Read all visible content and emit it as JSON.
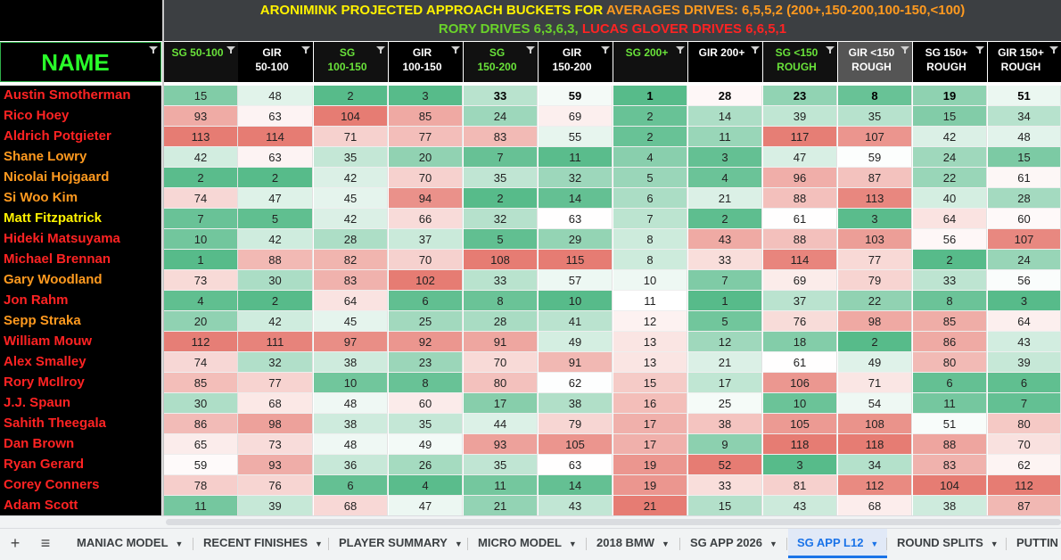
{
  "title": {
    "line1_parts": [
      {
        "text": "ARONIMINK PROJECTED APPROACH BUCKETS FOR ",
        "color": "yellow"
      },
      {
        "text": "AVERAGES DRIVES: 6,5,5,2 (200+,150-200,100-150,<100)",
        "color": "orange"
      }
    ],
    "line2_parts": [
      {
        "text": "RORY DRIVES 6,3,6,3, ",
        "color": "green"
      },
      {
        "text": "LUCAS GLOVER DRIVES 6,6,5,1",
        "color": "red"
      }
    ]
  },
  "name_header": "NAME",
  "columns": [
    {
      "label": "SG 50-100",
      "style": "green"
    },
    {
      "label": "GIR\n50-100",
      "style": "white"
    },
    {
      "label": "SG\n100-150",
      "style": "green"
    },
    {
      "label": "GIR\n100-150",
      "style": "white"
    },
    {
      "label": "SG\n150-200",
      "style": "green"
    },
    {
      "label": "GIR\n150-200",
      "style": "white"
    },
    {
      "label": "SG 200+",
      "style": "green"
    },
    {
      "label": "GIR 200+",
      "style": "white"
    },
    {
      "label": "SG <150\nROUGH",
      "style": "green"
    },
    {
      "label": "GIR <150\nROUGH",
      "style": "gray"
    },
    {
      "label": "SG 150+\nROUGH",
      "style": "white"
    },
    {
      "label": "GIR 150+\nROUGH",
      "style": "white"
    }
  ],
  "players": [
    {
      "name": "Austin Smotherman",
      "color": "#ff2323",
      "values": [
        15,
        48,
        2,
        3,
        33,
        59,
        1,
        28,
        23,
        8,
        19,
        51
      ]
    },
    {
      "name": "Rico Hoey",
      "color": "#ff2323",
      "values": [
        93,
        63,
        104,
        85,
        24,
        69,
        2,
        14,
        39,
        35,
        15,
        34
      ]
    },
    {
      "name": "Aldrich Potgieter",
      "color": "#ff2323",
      "values": [
        113,
        114,
        71,
        77,
        83,
        55,
        2,
        11,
        117,
        107,
        42,
        48
      ]
    },
    {
      "name": "Shane Lowry",
      "color": "#ff9a1f",
      "values": [
        42,
        63,
        35,
        20,
        7,
        11,
        4,
        3,
        47,
        59,
        24,
        15
      ]
    },
    {
      "name": "Nicolai Hojgaard",
      "color": "#ff9a1f",
      "values": [
        2,
        2,
        42,
        70,
        35,
        32,
        5,
        4,
        96,
        87,
        22,
        61
      ]
    },
    {
      "name": "Si Woo Kim",
      "color": "#ff9a1f",
      "values": [
        74,
        47,
        45,
        94,
        2,
        14,
        6,
        21,
        88,
        113,
        40,
        28
      ]
    },
    {
      "name": "Matt Fitzpatrick",
      "color": "#fff200",
      "values": [
        7,
        5,
        42,
        66,
        32,
        63,
        7,
        2,
        61,
        3,
        64,
        60
      ]
    },
    {
      "name": "Hideki Matsuyama",
      "color": "#ff2323",
      "values": [
        10,
        42,
        28,
        37,
        5,
        29,
        8,
        43,
        88,
        103,
        56,
        107
      ]
    },
    {
      "name": "Michael Brennan",
      "color": "#ff2323",
      "values": [
        1,
        88,
        82,
        70,
        108,
        115,
        8,
        33,
        114,
        77,
        2,
        24
      ]
    },
    {
      "name": "Gary Woodland",
      "color": "#ff9a1f",
      "values": [
        73,
        30,
        83,
        102,
        33,
        57,
        10,
        7,
        69,
        79,
        33,
        56
      ]
    },
    {
      "name": "Jon Rahm",
      "color": "#ff2323",
      "values": [
        4,
        2,
        64,
        6,
        8,
        10,
        11,
        1,
        37,
        22,
        8,
        3
      ]
    },
    {
      "name": "Sepp Straka",
      "color": "#ff9a1f",
      "values": [
        20,
        42,
        45,
        25,
        28,
        41,
        12,
        5,
        76,
        98,
        85,
        64
      ]
    },
    {
      "name": "William Mouw",
      "color": "#ff2323",
      "values": [
        112,
        111,
        97,
        92,
        91,
        49,
        13,
        12,
        18,
        2,
        86,
        43
      ]
    },
    {
      "name": "Alex Smalley",
      "color": "#ff2323",
      "values": [
        74,
        32,
        38,
        23,
        70,
        91,
        13,
        21,
        61,
        49,
        80,
        39
      ]
    },
    {
      "name": "Rory McIlroy",
      "color": "#ff2323",
      "values": [
        85,
        77,
        10,
        8,
        80,
        62,
        15,
        17,
        106,
        71,
        6,
        6
      ]
    },
    {
      "name": "J.J. Spaun",
      "color": "#ff2323",
      "values": [
        30,
        68,
        48,
        60,
        17,
        38,
        16,
        25,
        10,
        54,
        11,
        7
      ]
    },
    {
      "name": "Sahith Theegala",
      "color": "#ff2323",
      "values": [
        86,
        98,
        38,
        35,
        44,
        79,
        17,
        38,
        105,
        108,
        51,
        80
      ]
    },
    {
      "name": "Dan Brown",
      "color": "#ff2323",
      "values": [
        65,
        73,
        48,
        49,
        93,
        105,
        17,
        9,
        118,
        118,
        88,
        70
      ]
    },
    {
      "name": "Ryan Gerard",
      "color": "#ff2323",
      "values": [
        59,
        93,
        36,
        26,
        35,
        63,
        19,
        52,
        3,
        34,
        83,
        62
      ]
    },
    {
      "name": "Corey Conners",
      "color": "#ff2323",
      "values": [
        78,
        76,
        6,
        4,
        11,
        14,
        19,
        33,
        81,
        112,
        104,
        112
      ]
    },
    {
      "name": "Adam Scott",
      "color": "#ff2323",
      "values": [
        11,
        39,
        68,
        47,
        21,
        43,
        21,
        15,
        43,
        68,
        38,
        87
      ]
    }
  ],
  "tabs": [
    {
      "label": "MANIAC MODEL",
      "active": false
    },
    {
      "label": "RECENT FINISHES",
      "active": false
    },
    {
      "label": "PLAYER SUMMARY",
      "active": false
    },
    {
      "label": "MICRO MODEL",
      "active": false
    },
    {
      "label": "2018 BMW",
      "active": false
    },
    {
      "label": "SG APP 2026",
      "active": false
    },
    {
      "label": "SG APP L12",
      "active": true
    },
    {
      "label": "ROUND SPLITS",
      "active": false
    },
    {
      "label": "PUTTIN",
      "active": false
    }
  ],
  "tab_buttons": {
    "add": "+",
    "list": "≡"
  },
  "colors": {
    "green_high": "#57bb8a",
    "mid": "#ffffff",
    "red_low": "#e67c73",
    "title_yellow": "#fff200",
    "title_orange": "#ff9a1f",
    "title_green": "#6ad32a",
    "title_red": "#ff2323",
    "active_tab": "#1a73e8"
  }
}
